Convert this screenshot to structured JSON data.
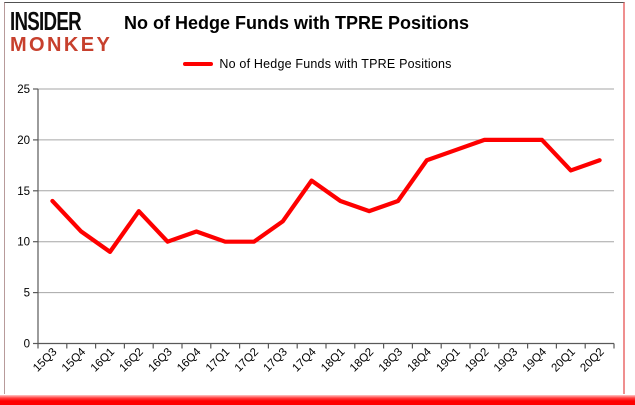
{
  "logo": {
    "line1": "INSIDER",
    "line2": "MONKEY"
  },
  "header": {
    "title": "No of Hedge Funds with TPRE Positions"
  },
  "legend": {
    "label": "No of Hedge Funds with TPRE Positions",
    "swatch_color": "#fe0000"
  },
  "chart_data": {
    "type": "line",
    "title": "No of Hedge Funds with TPRE Positions",
    "categories": [
      "15Q3",
      "15Q4",
      "16Q1",
      "16Q2",
      "16Q3",
      "16Q4",
      "17Q1",
      "17Q2",
      "17Q3",
      "17Q4",
      "18Q1",
      "18Q2",
      "18Q3",
      "18Q4",
      "19Q1",
      "19Q2",
      "19Q3",
      "19Q4",
      "20Q1",
      "20Q2"
    ],
    "series": [
      {
        "name": "No of Hedge Funds with TPRE Positions",
        "color": "#fe0000",
        "values": [
          14,
          11,
          9,
          13,
          10,
          11,
          10,
          10,
          12,
          16,
          14,
          13,
          14,
          18,
          19,
          20,
          20,
          20,
          17,
          18
        ]
      }
    ],
    "xlabel": "",
    "ylabel": "",
    "ylim": [
      0,
      25
    ],
    "yticks": [
      0,
      5,
      10,
      15,
      20,
      25
    ],
    "grid": true,
    "legend_position": "top-center"
  },
  "colors": {
    "line": "#fe0000",
    "gridline": "#a6a6a6",
    "axis": "#595959",
    "tick_label": "#000000",
    "logo_black": "#0b0b0b",
    "logo_red": "#c7402d",
    "bottom_bar": "#fe0000"
  }
}
